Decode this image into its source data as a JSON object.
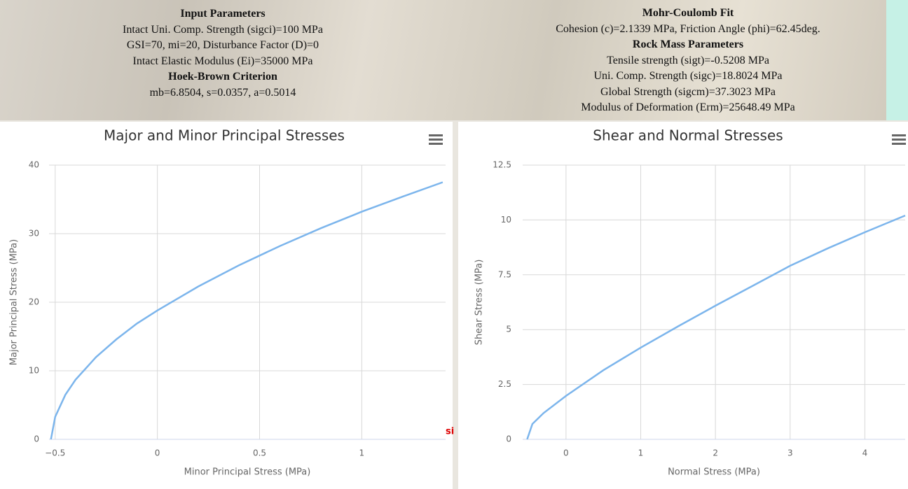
{
  "input_panel": {
    "title": "Input Parameters",
    "lines": [
      "Intact Uni. Comp. Strength (sigci)=100 MPa",
      "GSI=70, mi=20, Disturbance Factor (D)=0",
      "Intact Elastic Modulus (Ei)=35000 MPa"
    ]
  },
  "hoek_brown": {
    "title": "Hoek-Brown Criterion",
    "lines": [
      "mb=6.8504, s=0.0357, a=0.5014"
    ]
  },
  "mohr_coulomb": {
    "title": "Mohr-Coulomb Fit",
    "lines": [
      "Cohesion (c)=2.1339 MPa, Friction Angle (phi)=62.45deg."
    ]
  },
  "rock_mass": {
    "title": "Rock Mass Parameters",
    "lines": [
      "Tensile strength (sigt)=-0.5208 MPa",
      "Uni. Comp. Strength (sigc)=18.8024 MPa",
      "Global Strength (sigcm)=37.3023 MPa",
      "Modulus of Deformation (Erm)=25648.49 MPa"
    ]
  },
  "stray_label": "si",
  "chart_data": [
    {
      "type": "line",
      "title": "Major and Minor Principal Stresses",
      "x_label": "Minor Principal Stress (MPa)",
      "y_label": "Major Principal Stress (MPa)",
      "x": [
        -0.5208,
        -0.5,
        -0.45,
        -0.4,
        -0.3,
        -0.2,
        -0.1,
        0,
        0.2,
        0.4,
        0.6,
        0.8,
        1,
        1.2,
        1.396
      ],
      "values": [
        0,
        3.3,
        6.5,
        8.7,
        12.0,
        14.6,
        16.9,
        18.8,
        22.3,
        25.4,
        28.2,
        30.8,
        33.2,
        35.4,
        37.5
      ],
      "color": "#7cb5ec",
      "xlim": [
        -0.53,
        1.41
      ],
      "ylim": [
        0,
        40
      ],
      "xticks": [
        {
          "value": -0.5,
          "label": "−0.5"
        },
        0,
        0.5,
        1
      ],
      "yticks": [
        0,
        10,
        20,
        30,
        40
      ],
      "grid": true
    },
    {
      "type": "line",
      "title": "Shear and Normal Stresses",
      "x_label": "Normal Stress (MPa)",
      "y_label": "Shear Stress (MPa)",
      "x": [
        -0.52,
        -0.45,
        -0.3,
        0,
        0.5,
        1,
        1.5,
        2,
        2.5,
        3,
        3.5,
        4,
        4.54
      ],
      "values": [
        0,
        0.7,
        1.2,
        1.98,
        3.15,
        4.18,
        5.15,
        6.09,
        7.0,
        7.91,
        8.7,
        9.44,
        10.2
      ],
      "color": "#7cb5ec",
      "xlim": [
        -0.58,
        4.54
      ],
      "ylim": [
        0,
        12.5
      ],
      "xticks": [
        0,
        1,
        2,
        3,
        4
      ],
      "yticks": [
        0,
        2.5,
        5,
        7.5,
        10,
        12.5
      ],
      "grid": true
    }
  ]
}
